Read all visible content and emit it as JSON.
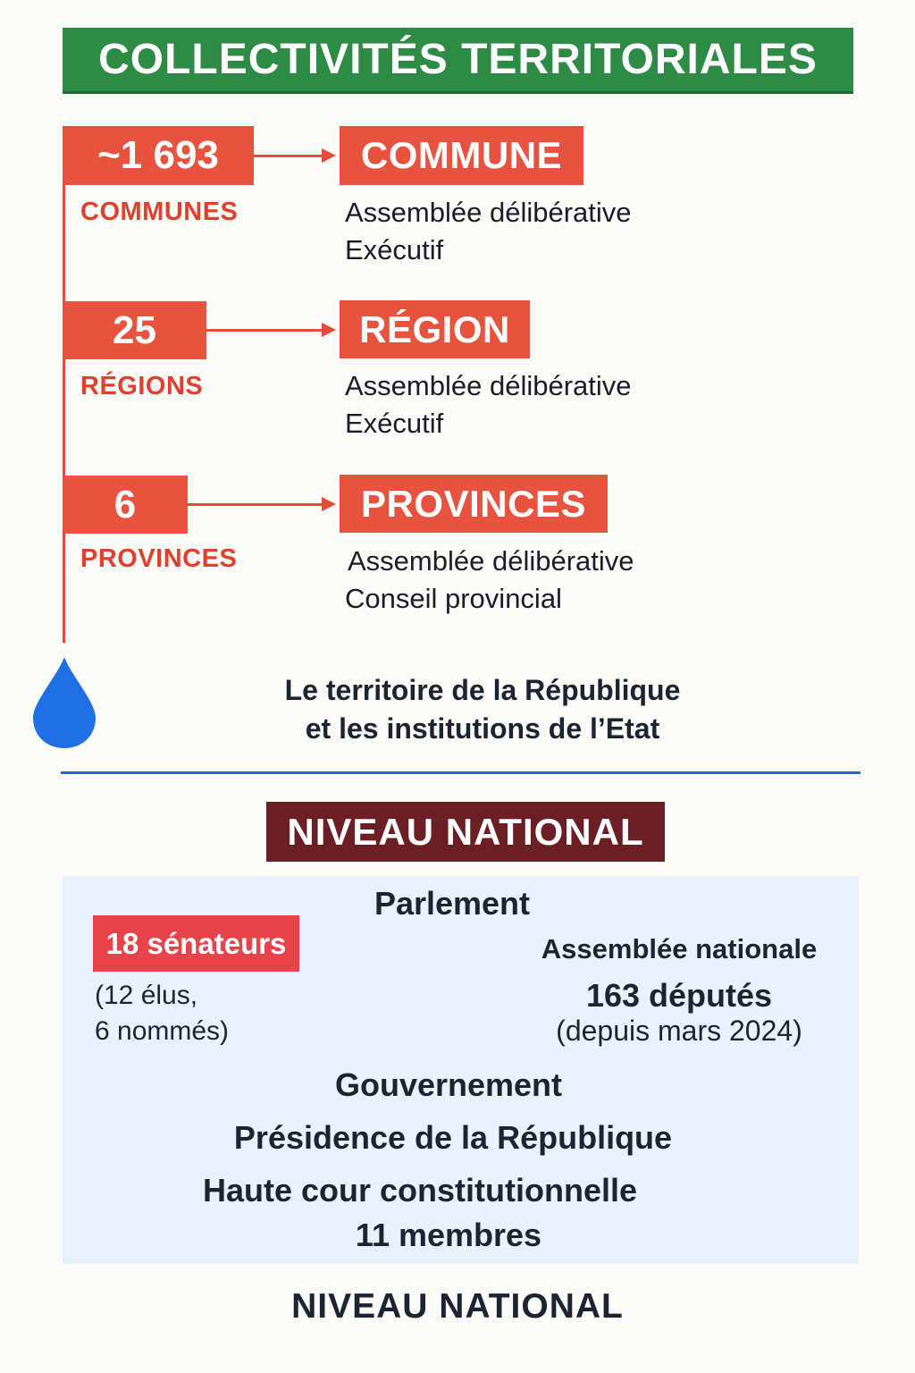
{
  "header": {
    "title": "COLLECTIVITÉS TERRITORIALES",
    "color": "#2e8b46"
  },
  "levels": [
    {
      "count": "~1 693",
      "count_label": "COMMUNES",
      "name": "COMMUNE",
      "lines": [
        "Assemblée délibérative",
        "Exécutif"
      ]
    },
    {
      "count": "25",
      "count_label": "RÉGIONS",
      "name": "RÉGION",
      "lines": [
        "Assemblée délibérative",
        "Exécutif"
      ]
    },
    {
      "count": "6",
      "count_label": "PROVINCES",
      "name": "PROVINCES",
      "lines": [
        "Assemblée délibérative",
        "Conseil provincial"
      ]
    }
  ],
  "territory": {
    "line1": "Le territoire de la République",
    "line2": "et les institutions de l’Etat"
  },
  "national": {
    "badge": "NIVEAU NATIONAL",
    "parlement": "Parlement",
    "senat": {
      "label": "18 sénateurs",
      "detail_line1": "(12 élus,",
      "detail_line2": "6 nommés)"
    },
    "assemblee": {
      "title": "Assemblée nationale",
      "deputes": "163 députés",
      "since": "(depuis mars 2024)"
    },
    "gouvernement": "Gouvernement",
    "presidence": "Présidence de la République",
    "hcc": {
      "line1": "Haute cour constitutionnelle",
      "line2": "11 membres"
    },
    "footer": "NIVEAU NATIONAL"
  },
  "colors": {
    "accent_red": "#e8533f",
    "divider_blue": "#2f62d4",
    "badge_dark_red": "#6b1f24",
    "panel_bg": "#e9f2fc",
    "drop_blue": "#1f6fe5"
  },
  "icons": {
    "drop": "water-drop-icon"
  }
}
